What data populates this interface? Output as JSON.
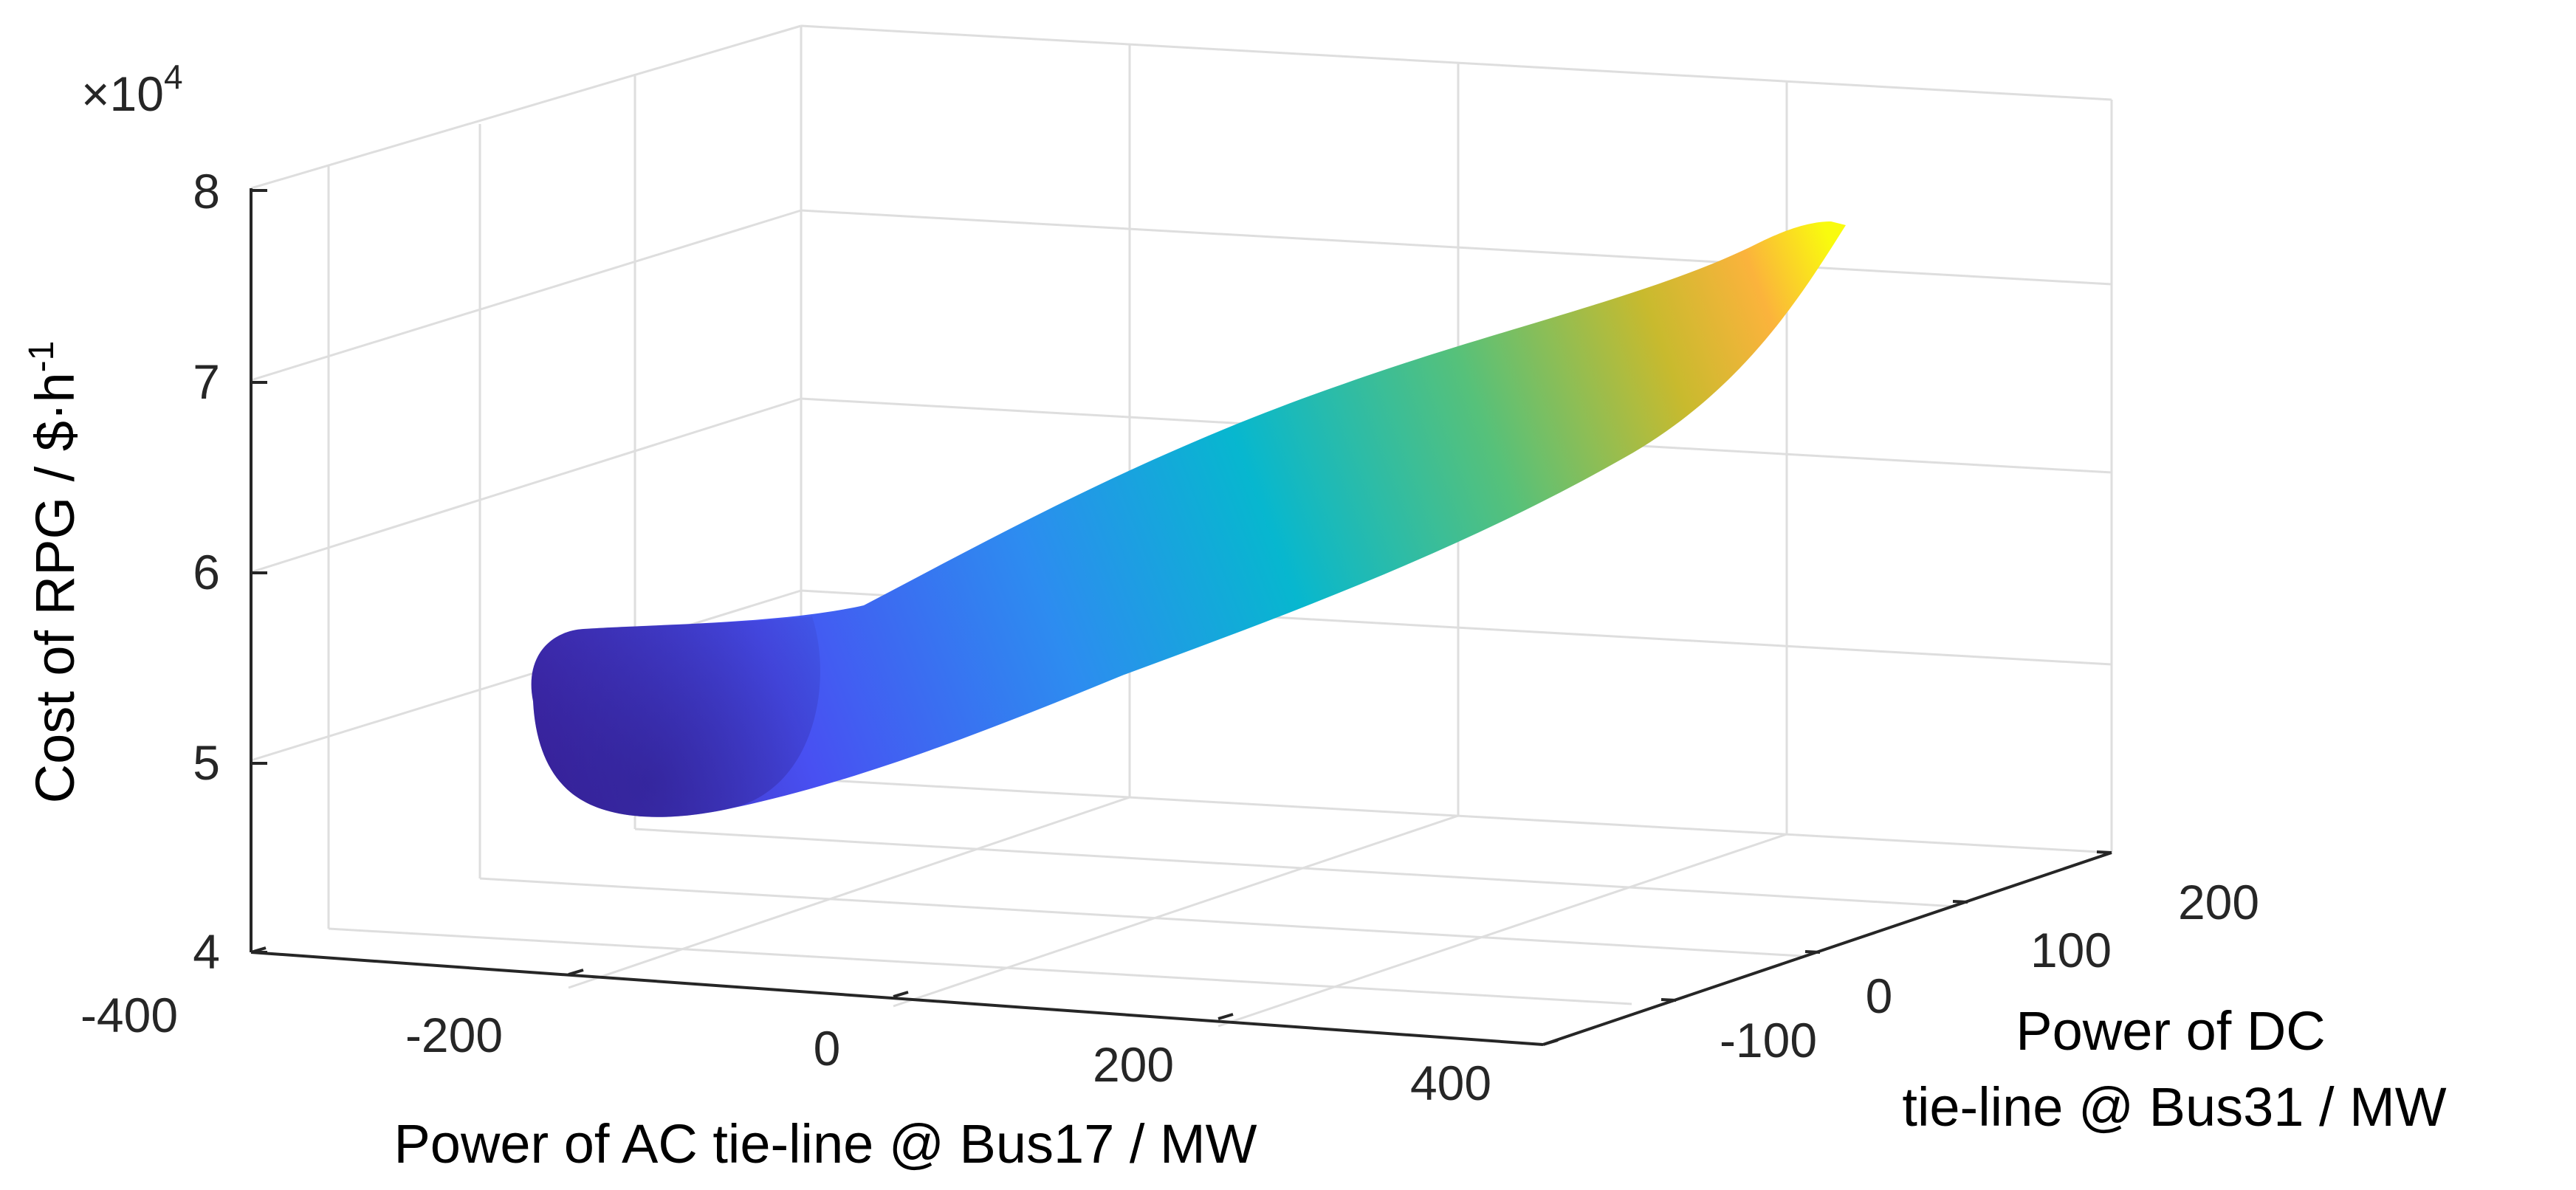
{
  "chart_data": {
    "type": "surface",
    "xlabel": "Power of AC tie-line @ Bus17 / MW",
    "ylabel_line1": "Power of DC",
    "ylabel_line2": "tie-line @ Bus31 / MW",
    "zlabel": "Cost of RPG / $·h",
    "zlabel_sup": "-1",
    "z_exponent_prefix": "×10",
    "z_exponent_power": "4",
    "x_ticks": [
      "-400",
      "-200",
      "0",
      "200",
      "400"
    ],
    "y_ticks": [
      "-100",
      "0",
      "100",
      "200"
    ],
    "z_ticks": [
      "4",
      "5",
      "6",
      "7",
      "8"
    ],
    "xlim": [
      -400,
      400
    ],
    "ylim": [
      -200,
      200
    ],
    "zlim": [
      40000,
      80000
    ],
    "grid": true,
    "colormap": "parula",
    "colors": {
      "low": "#3e26a8",
      "mid": "#00bfc4",
      "high": "#f9fb0e",
      "axis": "#262626",
      "grid": "#dedede"
    }
  }
}
